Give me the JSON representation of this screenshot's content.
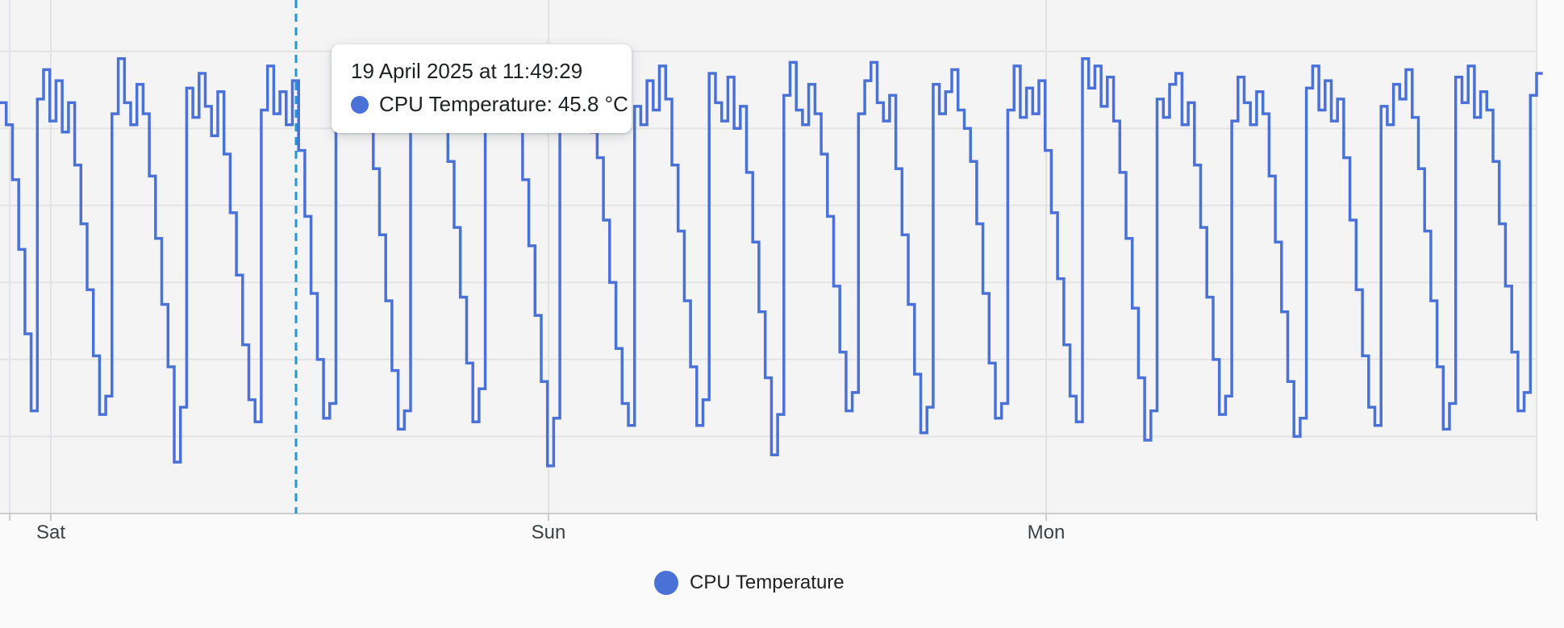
{
  "colors": {
    "series": "#4a71d6",
    "crosshair": "#2098d2",
    "grid": "#e3e3e5",
    "axis": "#cccccf",
    "plot_bg": "#f4f4f5",
    "page_bg": "#fafafa",
    "tooltip_bg": "#ffffff",
    "text_dark": "#202124",
    "axis_label": "#3c4043"
  },
  "tooltip": {
    "date": "19 April 2025 at 11:49:29",
    "series_label": "CPU Temperature:",
    "value": "45.8 °C",
    "dot_icon": "series-color-dot"
  },
  "legend": {
    "label": "CPU Temperature",
    "dot_icon": "series-color-dot"
  },
  "chart_data": {
    "type": "line",
    "title": "",
    "series_name": "CPU Temperature",
    "unit": "°C",
    "line_style": "step-after",
    "grid": true,
    "legend_position": "bottom-center",
    "x_ticks": [
      {
        "t_hours": 0,
        "label": "Sat"
      },
      {
        "t_hours": 24,
        "label": "Sun"
      },
      {
        "t_hours": 48,
        "label": "Mon"
      }
    ],
    "x_gridlines_hours": [
      -1.98,
      0,
      24,
      48,
      71.65
    ],
    "xlim_hours": [
      -2.45,
      72.97
    ],
    "ylim": [
      34,
      48
    ],
    "y_gridlines_c": [
      46.6,
      44.5,
      42.4,
      40.3,
      38.2,
      36.1
    ],
    "crosshair": {
      "t_hours": 11.824,
      "date": "19 April 2025 at 11:49:29",
      "value_c": 45.8
    },
    "t_start_hours": -2.45,
    "t_step_hours": 0.3,
    "values": [
      45.2,
      44.6,
      43.1,
      41.2,
      38.9,
      36.8,
      45.3,
      46.1,
      44.7,
      45.8,
      44.4,
      45.2,
      43.5,
      41.9,
      40.1,
      38.3,
      36.7,
      37.2,
      44.9,
      46.4,
      45.2,
      44.6,
      45.7,
      44.9,
      43.2,
      41.5,
      39.7,
      38.0,
      35.4,
      36.9,
      45.6,
      44.8,
      46.0,
      45.1,
      44.3,
      45.5,
      43.8,
      42.2,
      40.5,
      38.6,
      37.1,
      36.5,
      45.0,
      46.2,
      44.9,
      45.5,
      44.6,
      45.8,
      43.9,
      42.1,
      40.0,
      38.2,
      36.6,
      37.0,
      46.5,
      45.4,
      46.3,
      44.9,
      45.9,
      44.6,
      43.4,
      41.6,
      39.8,
      37.9,
      36.3,
      36.8,
      45.2,
      44.7,
      45.9,
      46.1,
      44.8,
      45.3,
      43.6,
      41.8,
      39.9,
      38.1,
      36.5,
      37.4,
      44.8,
      46.0,
      45.1,
      44.5,
      45.6,
      44.8,
      43.1,
      41.3,
      39.4,
      37.6,
      35.3,
      36.6,
      45.5,
      46.3,
      44.9,
      45.7,
      45.0,
      44.4,
      43.7,
      42.0,
      40.3,
      38.5,
      37.0,
      36.4,
      45.1,
      44.6,
      45.8,
      45.0,
      46.2,
      45.3,
      43.5,
      41.7,
      39.8,
      38.0,
      36.4,
      37.1,
      46.0,
      45.2,
      44.7,
      45.9,
      44.5,
      45.1,
      43.3,
      41.4,
      39.5,
      37.7,
      35.6,
      36.7,
      45.4,
      46.3,
      45.0,
      44.6,
      45.7,
      44.9,
      43.8,
      42.1,
      40.2,
      38.4,
      36.8,
      37.3,
      44.9,
      45.8,
      46.3,
      45.2,
      44.7,
      45.4,
      43.4,
      41.6,
      39.7,
      37.8,
      36.2,
      36.9,
      45.7,
      44.9,
      45.5,
      46.1,
      45.0,
      44.5,
      43.6,
      41.9,
      40.0,
      38.1,
      36.6,
      37.0,
      45.0,
      46.2,
      44.8,
      45.6,
      44.9,
      45.8,
      43.9,
      42.2,
      40.4,
      38.6,
      37.2,
      36.5,
      46.4,
      45.6,
      46.2,
      45.1,
      45.9,
      44.7,
      43.3,
      41.5,
      39.6,
      37.7,
      36.0,
      36.8,
      45.3,
      44.8,
      45.7,
      46.0,
      44.6,
      45.2,
      43.5,
      41.8,
      39.9,
      38.2,
      36.7,
      37.2,
      44.7,
      45.9,
      45.2,
      44.6,
      45.5,
      44.9,
      43.2,
      41.4,
      39.5,
      37.6,
      36.1,
      36.6,
      45.6,
      46.2,
      45.0,
      45.8,
      44.7,
      45.3,
      43.7,
      42.0,
      40.1,
      38.3,
      36.9,
      36.4,
      45.1,
      44.6,
      45.7,
      45.3,
      46.1,
      44.8,
      43.4,
      41.7,
      39.8,
      38.0,
      36.3,
      37.0,
      45.9,
      45.2,
      46.2,
      44.8,
      45.5,
      45.0,
      43.6,
      41.9,
      40.2,
      38.4,
      36.8,
      37.3,
      45.4,
      46.0
    ]
  }
}
